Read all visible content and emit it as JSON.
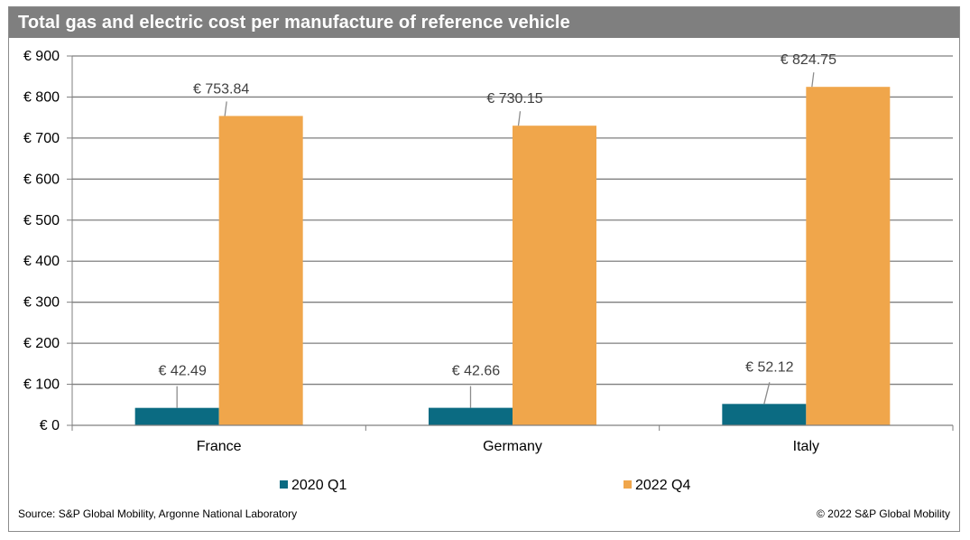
{
  "chart_data": {
    "type": "bar",
    "title": "Total gas and electric cost per manufacture of reference vehicle",
    "categories": [
      "France",
      "Germany",
      "Italy"
    ],
    "series": [
      {
        "name": "2020 Q1",
        "values": [
          42.49,
          42.66,
          52.12
        ],
        "color": "#0b6b82",
        "labels": [
          "€ 42.49",
          "€ 42.66",
          "€ 52.12"
        ]
      },
      {
        "name": "2022 Q4",
        "values": [
          753.84,
          730.15,
          824.75
        ],
        "color": "#f0a64b",
        "labels": [
          "€ 753.84",
          "€ 730.15",
          "€ 824.75"
        ]
      }
    ],
    "ylim": [
      0,
      900
    ],
    "yticks": [
      0,
      100,
      200,
      300,
      400,
      500,
      600,
      700,
      800,
      900
    ],
    "ytick_labels": [
      "€ 0",
      "€ 100",
      "€ 200",
      "€ 300",
      "€ 400",
      "€ 500",
      "€ 600",
      "€ 700",
      "€ 800",
      "€ 900"
    ],
    "grid": true,
    "legend_position": "bottom",
    "gridline_color": "#7f7f7f"
  },
  "footer": {
    "source": "Source: S&P Global Mobility, Argonne National Laboratory",
    "copyright": "© 2022 S&P Global Mobility"
  }
}
